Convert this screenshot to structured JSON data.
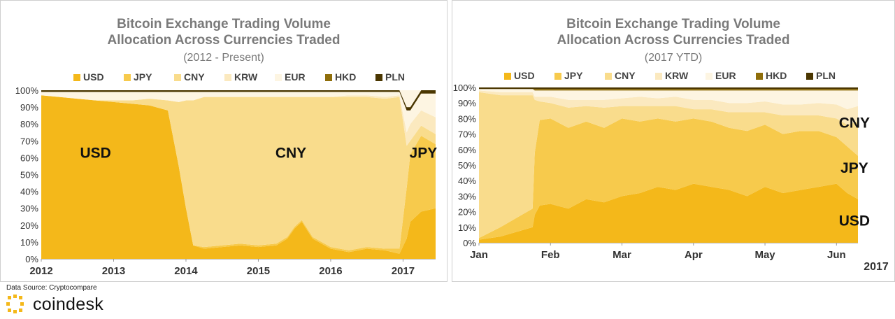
{
  "colors": {
    "USD": "#f4b81a",
    "JPY": "#f7ca4c",
    "CNY": "#f9dc8c",
    "KRW": "#fbe9bf",
    "EUR": "#fdf5e2",
    "HKD": "#8f6e0a",
    "PLN": "#4a3600"
  },
  "footer": {
    "source": "Data Source: Cryptocompare",
    "brand": "coindesk"
  },
  "charts": [
    {
      "title_line1": "Bitcoin Exchange Trading Volume",
      "title_line2": "Allocation Across Currencies Traded",
      "subtitle": "(2012 - Present)",
      "overlay_labels": [
        {
          "text": "USD",
          "x": 2012.75,
          "y": 60
        },
        {
          "text": "CNY",
          "x": 2015.45,
          "y": 60
        },
        {
          "text": "JPY",
          "x": 2017.28,
          "y": 60
        }
      ]
    },
    {
      "title_line1": "Bitcoin Exchange Trading Volume",
      "title_line2": "Allocation Across Currencies Traded",
      "subtitle": "(2017 YTD)",
      "overlay_labels": [
        {
          "text": "CNY",
          "x": 5.25,
          "y": 74
        },
        {
          "text": "JPY",
          "x": 5.25,
          "y": 45
        },
        {
          "text": "USD",
          "x": 5.25,
          "y": 11
        }
      ],
      "corner_label": "2017"
    }
  ],
  "chart_data": [
    {
      "type": "area",
      "stacked": true,
      "x_unit": "year",
      "xlim": [
        2012.0,
        2017.45
      ],
      "ylim": [
        0,
        100
      ],
      "x_ticks": [
        2012,
        2013,
        2014,
        2015,
        2016,
        2017
      ],
      "x_tick_labels": [
        "2012",
        "2013",
        "2014",
        "2015",
        "2016",
        "2017"
      ],
      "y_ticks": [
        0,
        10,
        20,
        30,
        40,
        50,
        60,
        70,
        80,
        90,
        100
      ],
      "y_tick_labels": [
        "0%",
        "10%",
        "20%",
        "30%",
        "40%",
        "50%",
        "60%",
        "70%",
        "80%",
        "90%",
        "100%"
      ],
      "legend": [
        "USD",
        "JPY",
        "CNY",
        "KRW",
        "EUR",
        "HKD",
        "PLN"
      ],
      "legend_position": "top",
      "x": [
        2012.0,
        2012.25,
        2012.5,
        2012.75,
        2013.0,
        2013.25,
        2013.5,
        2013.75,
        2013.9,
        2014.0,
        2014.1,
        2014.25,
        2014.5,
        2014.75,
        2015.0,
        2015.25,
        2015.4,
        2015.5,
        2015.6,
        2015.75,
        2016.0,
        2016.25,
        2016.5,
        2016.75,
        2016.95,
        2017.05,
        2017.1,
        2017.25,
        2017.45
      ],
      "series": [
        {
          "name": "USD",
          "values": [
            97,
            96,
            95,
            94,
            93,
            92,
            91,
            88,
            55,
            30,
            8,
            6,
            7,
            8,
            7,
            8,
            12,
            18,
            22,
            12,
            6,
            4,
            6,
            5,
            3,
            12,
            22,
            28,
            30
          ]
        },
        {
          "name": "JPY",
          "values": [
            0,
            0,
            0,
            0,
            0,
            0,
            0,
            0,
            0,
            0,
            0,
            1,
            1,
            1,
            1,
            1,
            1,
            1,
            1,
            1,
            1,
            1,
            1,
            1,
            3,
            30,
            40,
            45,
            38
          ]
        },
        {
          "name": "CNY",
          "values": [
            0,
            0,
            0,
            0,
            1,
            2,
            4,
            6,
            38,
            64,
            86,
            89,
            88,
            87,
            88,
            87,
            83,
            77,
            73,
            83,
            89,
            91,
            89,
            89,
            90,
            25,
            8,
            6,
            6
          ]
        },
        {
          "name": "KRW",
          "values": [
            0,
            0,
            0,
            0,
            0,
            0,
            0,
            0,
            0,
            0,
            0,
            0,
            0,
            0,
            0,
            0,
            0,
            0,
            0,
            0,
            0,
            1,
            1,
            1,
            1,
            8,
            10,
            9,
            10
          ]
        },
        {
          "name": "EUR",
          "values": [
            2,
            3,
            4,
            5,
            5,
            5,
            4,
            5,
            6,
            5,
            5,
            3,
            3,
            3,
            3,
            3,
            3,
            3,
            3,
            3,
            3,
            2,
            2,
            3,
            2,
            13,
            8,
            10,
            14
          ]
        },
        {
          "name": "HKD",
          "values": [
            0,
            0,
            0,
            0,
            0,
            0,
            0,
            0,
            0,
            0,
            0,
            0,
            0,
            0,
            0,
            0,
            0,
            0,
            0,
            0,
            0,
            0,
            0,
            0,
            0,
            0,
            0,
            0,
            0
          ]
        },
        {
          "name": "PLN",
          "values": [
            1,
            1,
            1,
            1,
            1,
            1,
            1,
            1,
            1,
            1,
            1,
            1,
            1,
            1,
            1,
            1,
            1,
            1,
            1,
            1,
            1,
            1,
            1,
            1,
            1,
            2,
            2,
            2,
            2
          ]
        }
      ]
    },
    {
      "type": "area",
      "stacked": true,
      "x_unit": "month of 2017",
      "xlim": [
        0,
        5.3
      ],
      "ylim": [
        0,
        100
      ],
      "x_ticks": [
        0,
        1,
        2,
        3,
        4,
        5
      ],
      "x_tick_labels": [
        "Jan",
        "Feb",
        "Mar",
        "Apr",
        "May",
        "Jun"
      ],
      "y_ticks": [
        0,
        10,
        20,
        30,
        40,
        50,
        60,
        70,
        80,
        90,
        100
      ],
      "y_tick_labels": [
        "0%",
        "10%",
        "20%",
        "30%",
        "40%",
        "50%",
        "60%",
        "70%",
        "80%",
        "90%",
        "100%"
      ],
      "legend": [
        "USD",
        "JPY",
        "CNY",
        "KRW",
        "EUR",
        "HKD",
        "PLN"
      ],
      "legend_position": "top",
      "x": [
        0,
        0.3,
        0.6,
        0.75,
        0.78,
        0.85,
        1.0,
        1.25,
        1.5,
        1.75,
        2.0,
        2.25,
        2.5,
        2.75,
        3.0,
        3.25,
        3.5,
        3.75,
        4.0,
        4.25,
        4.5,
        4.75,
        5.0,
        5.15,
        5.3
      ],
      "series": [
        {
          "name": "USD",
          "values": [
            2,
            4,
            8,
            10,
            18,
            24,
            25,
            22,
            28,
            26,
            30,
            32,
            36,
            34,
            38,
            36,
            34,
            30,
            36,
            32,
            34,
            36,
            38,
            32,
            28
          ]
        },
        {
          "name": "JPY",
          "values": [
            1,
            6,
            10,
            12,
            40,
            55,
            55,
            52,
            50,
            48,
            50,
            46,
            44,
            44,
            42,
            42,
            40,
            42,
            40,
            38,
            38,
            36,
            30,
            30,
            28
          ]
        },
        {
          "name": "CNY",
          "values": [
            94,
            85,
            77,
            73,
            34,
            12,
            10,
            13,
            10,
            13,
            8,
            10,
            8,
            10,
            6,
            8,
            10,
            12,
            8,
            12,
            10,
            10,
            12,
            14,
            22
          ]
        },
        {
          "name": "KRW",
          "values": [
            1,
            2,
            2,
            2,
            2,
            3,
            4,
            5,
            4,
            5,
            5,
            6,
            5,
            6,
            6,
            6,
            6,
            6,
            7,
            7,
            7,
            8,
            9,
            10,
            10
          ]
        },
        {
          "name": "EUR",
          "values": [
            1,
            2,
            2,
            2,
            4,
            4,
            4,
            6,
            6,
            6,
            5,
            4,
            5,
            4,
            6,
            6,
            8,
            8,
            7,
            9,
            9,
            8,
            9,
            12,
            10
          ]
        },
        {
          "name": "HKD",
          "values": [
            0,
            0,
            0,
            0,
            1,
            1,
            1,
            1,
            1,
            1,
            1,
            1,
            1,
            1,
            1,
            1,
            1,
            1,
            1,
            1,
            1,
            1,
            1,
            1,
            1
          ]
        },
        {
          "name": "PLN",
          "values": [
            1,
            1,
            1,
            1,
            1,
            1,
            1,
            1,
            1,
            1,
            1,
            1,
            1,
            1,
            1,
            1,
            1,
            1,
            1,
            1,
            1,
            1,
            1,
            1,
            1
          ]
        }
      ]
    }
  ]
}
